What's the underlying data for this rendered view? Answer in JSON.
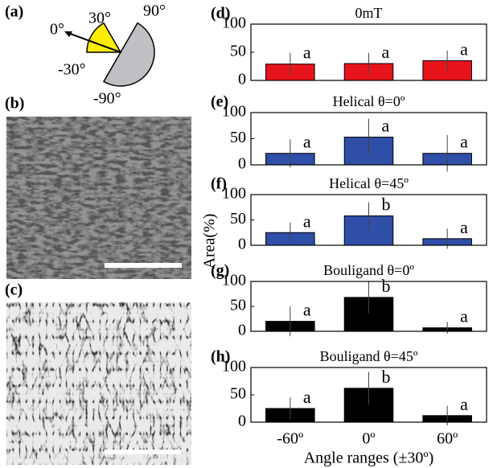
{
  "panel_labels": [
    "(a)",
    "(b)",
    "(c)"
  ],
  "angle_diagram": {
    "labels": [
      "0°",
      "30°",
      "90°",
      "-30°",
      "-90°"
    ]
  },
  "ylabel": "Area(%)",
  "chart_data": [
    {
      "type": "bar",
      "panel": "(d)",
      "title": "0mT",
      "categories": [
        null,
        null,
        null
      ],
      "values": [
        29,
        30,
        35
      ],
      "errors": [
        20,
        19,
        18
      ],
      "annotations": [
        "a",
        "a",
        "a"
      ],
      "color": "#e8141c",
      "ylim": [
        0,
        100
      ],
      "yticks": [
        0,
        50,
        100
      ]
    },
    {
      "type": "bar",
      "panel": "(e)",
      "title": "Helical θ=0º",
      "categories": [
        null,
        null,
        null
      ],
      "values": [
        22,
        53,
        22
      ],
      "errors": [
        27,
        35,
        35
      ],
      "annotations": [
        "a",
        "a",
        "a"
      ],
      "color": "#2f4ea8",
      "ylim": [
        0,
        100
      ],
      "yticks": [
        0,
        50,
        100
      ]
    },
    {
      "type": "bar",
      "panel": "(f)",
      "title": "Helical θ=45º",
      "categories": [
        null,
        null,
        null
      ],
      "values": [
        25,
        58,
        13
      ],
      "errors": [
        20,
        27,
        20
      ],
      "annotations": [
        "a",
        "b",
        "a"
      ],
      "color": "#2f4ea8",
      "ylim": [
        0,
        100
      ],
      "yticks": [
        0,
        50,
        100
      ]
    },
    {
      "type": "bar",
      "panel": "(g)",
      "title": "Bouligand θ=0º",
      "categories": [
        null,
        null,
        null
      ],
      "values": [
        20,
        68,
        7
      ],
      "errors": [
        30,
        32,
        12
      ],
      "annotations": [
        "a",
        "b",
        "a"
      ],
      "color": "#000000",
      "ylim": [
        0,
        100
      ],
      "yticks": [
        0,
        50,
        100
      ]
    },
    {
      "type": "bar",
      "panel": "(h)",
      "title": "Bouligand θ=45º",
      "categories": [
        "-60º",
        "0º",
        "60º"
      ],
      "xlabel": "Angle ranges (±30º)",
      "values": [
        25,
        62,
        12
      ],
      "errors": [
        20,
        30,
        18
      ],
      "annotations": [
        "a",
        "b",
        "a"
      ],
      "color": "#000000",
      "ylim": [
        0,
        100
      ],
      "yticks": [
        0,
        50,
        100
      ]
    }
  ]
}
